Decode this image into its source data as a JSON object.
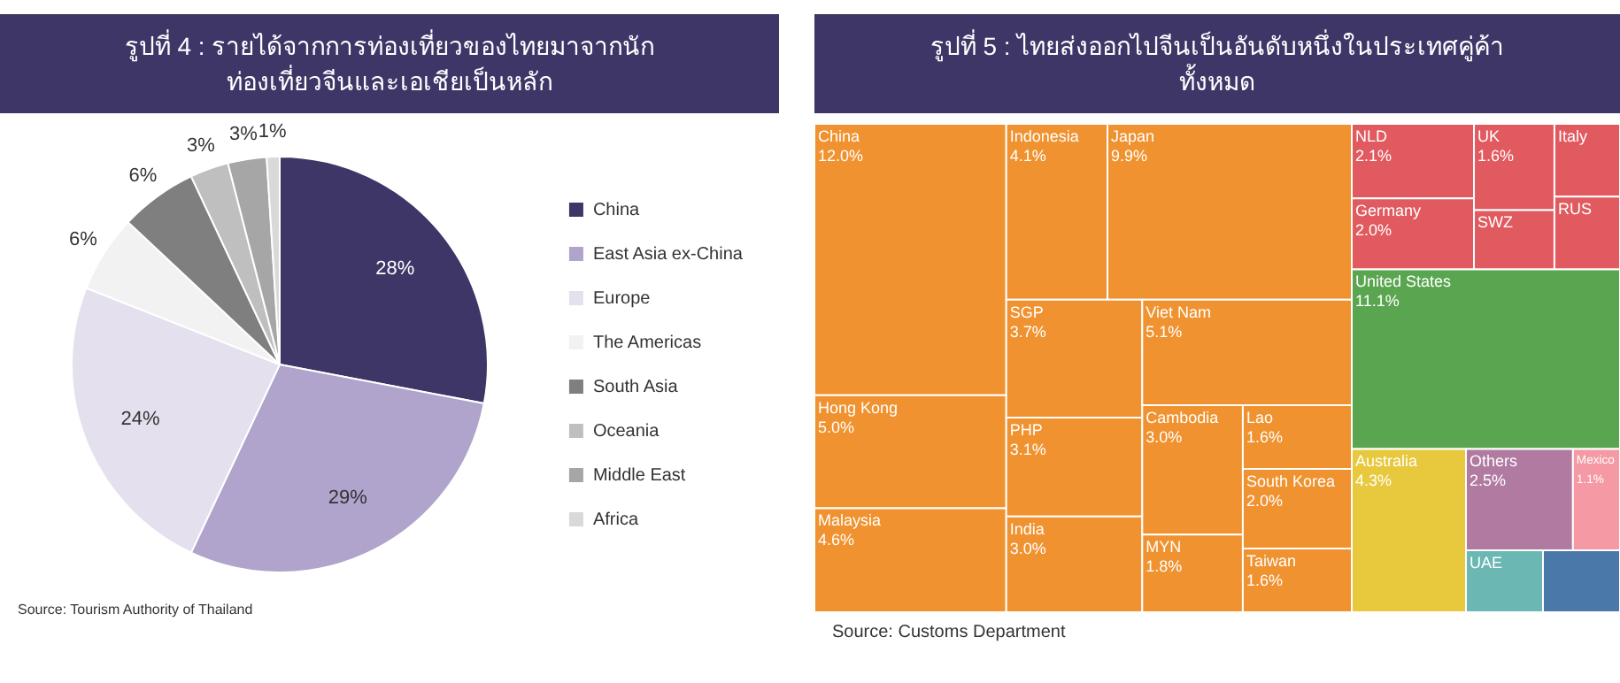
{
  "chart_data": [
    {
      "type": "pie",
      "title": "รูปที่ 4 : รายได้จากการท่องเที่ยวของไทยมาจากนักท่องเที่ยวจีนและเอเชียเป็นหลัก",
      "categories": [
        "China",
        "East Asia ex-China",
        "Europe",
        "The Americas",
        "South Asia",
        "Oceania",
        "Middle East",
        "Africa"
      ],
      "values": [
        28,
        29,
        24,
        6,
        6,
        3,
        3,
        1
      ],
      "colors": [
        "#3d3667",
        "#b0a3cc",
        "#e4e0ee",
        "#f2f2f2",
        "#7f7f7f",
        "#bfbfbf",
        "#a6a6a6",
        "#d9d9d9"
      ],
      "value_labels": [
        "28%",
        "29%",
        "24%",
        "6%",
        "6%",
        "3%",
        "3%",
        "1%"
      ],
      "legend": "right",
      "annotations": [
        "Source: Tourism Authority of Thailand"
      ]
    },
    {
      "type": "other",
      "title": "รูปที่ 5 : ไทยส่งออกไปจีนเป็นอันดับหนึ่งในประเทศคู่ค้าทั้งหมด",
      "categories": [
        "China",
        "Hong Kong",
        "Malaysia",
        "Indonesia",
        "Japan",
        "SGP",
        "PHP",
        "India",
        "Viet Nam",
        "Cambodia",
        "MYN",
        "Lao",
        "South Korea",
        "Taiwan",
        "NLD",
        "Germany",
        "UK",
        "SWZ",
        "Italy",
        "RUS",
        "United States",
        "Australia",
        "Others",
        "Mexico",
        "UAE",
        null
      ],
      "values": [
        12.0,
        5.0,
        4.6,
        4.1,
        9.9,
        3.7,
        3.1,
        3.0,
        5.1,
        3.0,
        1.8,
        1.6,
        2.0,
        1.6,
        2.1,
        2.0,
        1.6,
        null,
        null,
        null,
        11.1,
        4.3,
        2.5,
        1.1,
        null,
        null
      ],
      "colors": [
        "#f0922f",
        "#f0922f",
        "#f0922f",
        "#f0922f",
        "#f0922f",
        "#f0922f",
        "#f0922f",
        "#f0922f",
        "#f0922f",
        "#f0922f",
        "#f0922f",
        "#f0922f",
        "#f0922f",
        "#f0922f",
        "#e05a5f",
        "#e05a5f",
        "#e05a5f",
        "#e05a5f",
        "#e05a5f",
        "#e05a5f",
        "#5aa650",
        "#e8c83c",
        "#b07aa1",
        "#f59aa5",
        "#6bb7b3",
        "#4a78a8"
      ],
      "value_labels": [
        "12.0%",
        "5.0%",
        "4.6%",
        "4.1%",
        "9.9%",
        "3.7%",
        "3.1%",
        "3.0%",
        "5.1%",
        "3.0%",
        "1.8%",
        "1.6%",
        "2.0%",
        "1.6%",
        "2.1%",
        "2.0%",
        "1.6%",
        null,
        null,
        null,
        "11.1%",
        "4.3%",
        "2.5%",
        "1.1%",
        null,
        null
      ],
      "annotations": [
        "Source: Customs Department"
      ]
    }
  ]
}
